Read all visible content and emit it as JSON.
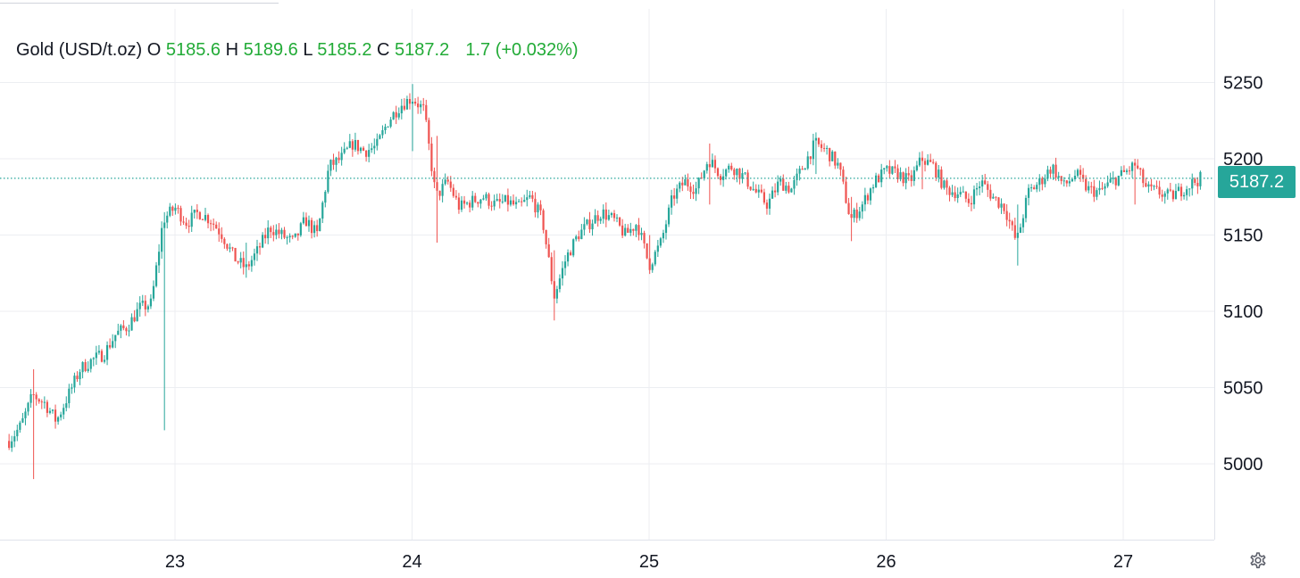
{
  "legend": {
    "symbol": "Gold (USD/t.oz)",
    "open_label": "O",
    "open_value": "5185.6",
    "high_label": "H",
    "high_value": "5189.6",
    "low_label": "L",
    "low_value": "5185.2",
    "close_label": "C",
    "close_value": "5187.2",
    "change_value": "1.7",
    "change_pct": "(+0.032%)"
  },
  "price_label": "5187.2",
  "settings_icon": "gear-icon",
  "colors": {
    "up": "#26a69a",
    "down": "#ef5350",
    "legend_value": "#22ab37",
    "grid": "#eceef2",
    "axis_text": "#131722",
    "price_line": "#26a69a",
    "price_label_bg": "#26a69a"
  },
  "chart_data": {
    "type": "candlestick",
    "title": "Gold (USD/t.oz)",
    "x_tick_labels": [
      "23",
      "24",
      "25",
      "26",
      "27"
    ],
    "x_ticks": [
      23,
      24,
      25,
      26,
      27
    ],
    "xlim": [
      22.3,
      27.35
    ],
    "y_tick_labels": [
      "5000",
      "5050",
      "5100",
      "5150",
      "5200",
      "5250"
    ],
    "y_ticks": [
      5000,
      5050,
      5100,
      5150,
      5200,
      5250
    ],
    "ylim": [
      4950,
      5305
    ],
    "grid": true,
    "last_price": 5187.2,
    "series": [
      {
        "name": "Gold (USD/t.oz)",
        "close_path": [
          [
            22.3,
            5015
          ],
          [
            22.35,
            5025
          ],
          [
            22.4,
            5045
          ],
          [
            22.45,
            5040
          ],
          [
            22.5,
            5028
          ],
          [
            22.55,
            5045
          ],
          [
            22.6,
            5062
          ],
          [
            22.65,
            5068
          ],
          [
            22.7,
            5072
          ],
          [
            22.75,
            5085
          ],
          [
            22.8,
            5090
          ],
          [
            22.85,
            5102
          ],
          [
            22.9,
            5105
          ],
          [
            22.95,
            5160
          ],
          [
            23.0,
            5168
          ],
          [
            23.05,
            5158
          ],
          [
            23.1,
            5165
          ],
          [
            23.15,
            5160
          ],
          [
            23.2,
            5150
          ],
          [
            23.25,
            5135
          ],
          [
            23.3,
            5128
          ],
          [
            23.35,
            5140
          ],
          [
            23.4,
            5155
          ],
          [
            23.45,
            5150
          ],
          [
            23.5,
            5145
          ],
          [
            23.55,
            5160
          ],
          [
            23.6,
            5150
          ],
          [
            23.65,
            5195
          ],
          [
            23.7,
            5200
          ],
          [
            23.75,
            5210
          ],
          [
            23.8,
            5205
          ],
          [
            23.85,
            5208
          ],
          [
            23.9,
            5225
          ],
          [
            23.95,
            5235
          ],
          [
            24.0,
            5240
          ],
          [
            24.05,
            5232
          ],
          [
            24.1,
            5175
          ],
          [
            24.15,
            5185
          ],
          [
            24.2,
            5168
          ],
          [
            24.25,
            5172
          ],
          [
            24.3,
            5175
          ],
          [
            24.35,
            5170
          ],
          [
            24.4,
            5172
          ],
          [
            24.45,
            5168
          ],
          [
            24.5,
            5175
          ],
          [
            24.55,
            5160
          ],
          [
            24.6,
            5110
          ],
          [
            24.65,
            5135
          ],
          [
            24.7,
            5150
          ],
          [
            24.75,
            5158
          ],
          [
            24.8,
            5165
          ],
          [
            24.85,
            5160
          ],
          [
            24.9,
            5150
          ],
          [
            24.95,
            5158
          ],
          [
            25.0,
            5130
          ],
          [
            25.05,
            5145
          ],
          [
            25.1,
            5175
          ],
          [
            25.15,
            5185
          ],
          [
            25.2,
            5180
          ],
          [
            25.25,
            5200
          ],
          [
            25.3,
            5190
          ],
          [
            25.35,
            5195
          ],
          [
            25.4,
            5188
          ],
          [
            25.45,
            5178
          ],
          [
            25.5,
            5170
          ],
          [
            25.55,
            5185
          ],
          [
            25.6,
            5180
          ],
          [
            25.65,
            5195
          ],
          [
            25.7,
            5210
          ],
          [
            25.75,
            5205
          ],
          [
            25.8,
            5195
          ],
          [
            25.85,
            5160
          ],
          [
            25.9,
            5170
          ],
          [
            25.95,
            5185
          ],
          [
            26.0,
            5192
          ],
          [
            26.05,
            5190
          ],
          [
            26.1,
            5185
          ],
          [
            26.15,
            5200
          ],
          [
            26.2,
            5195
          ],
          [
            26.25,
            5180
          ],
          [
            26.3,
            5178
          ],
          [
            26.35,
            5172
          ],
          [
            26.4,
            5185
          ],
          [
            26.45,
            5175
          ],
          [
            26.5,
            5168
          ],
          [
            26.55,
            5145
          ],
          [
            26.6,
            5178
          ],
          [
            26.65,
            5185
          ],
          [
            26.7,
            5195
          ],
          [
            26.75,
            5182
          ],
          [
            26.8,
            5190
          ],
          [
            26.85,
            5180
          ],
          [
            26.9,
            5178
          ],
          [
            26.95,
            5185
          ],
          [
            27.0,
            5190
          ],
          [
            27.05,
            5196
          ],
          [
            27.1,
            5180
          ],
          [
            27.15,
            5178
          ],
          [
            27.2,
            5175
          ],
          [
            27.25,
            5180
          ],
          [
            27.3,
            5185
          ],
          [
            27.33,
            5187.2
          ]
        ],
        "wick_extremes": [
          {
            "x": 22.4,
            "low": 4990,
            "high": 5062
          },
          {
            "x": 22.95,
            "low": 5022,
            "high": 5165
          },
          {
            "x": 23.3,
            "low": 5122,
            "high": 5145
          },
          {
            "x": 24.0,
            "low": 5205,
            "high": 5249
          },
          {
            "x": 24.1,
            "low": 5145,
            "high": 5215
          },
          {
            "x": 24.6,
            "low": 5094,
            "high": 5140
          },
          {
            "x": 25.0,
            "low": 5128,
            "high": 5150
          },
          {
            "x": 25.25,
            "low": 5170,
            "high": 5210
          },
          {
            "x": 25.7,
            "low": 5190,
            "high": 5217
          },
          {
            "x": 25.85,
            "low": 5146,
            "high": 5175
          },
          {
            "x": 26.15,
            "low": 5180,
            "high": 5205
          },
          {
            "x": 26.55,
            "low": 5130,
            "high": 5170
          },
          {
            "x": 27.05,
            "low": 5170,
            "high": 5200
          }
        ]
      }
    ]
  }
}
